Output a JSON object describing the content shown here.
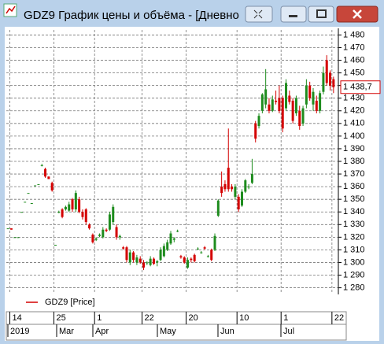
{
  "window": {
    "title": "GDZ9 График цены и объёма - [Дневно"
  },
  "chart_data": {
    "type": "candlestick",
    "categories": [
      null,
      "14",
      null,
      null,
      null,
      null,
      null,
      null,
      null,
      null,
      null,
      null,
      null,
      null,
      "25",
      null,
      null,
      null,
      null,
      null,
      null,
      null,
      null,
      null,
      null,
      null,
      "1",
      null,
      null,
      null,
      null,
      null,
      null,
      null,
      null,
      null,
      null,
      null,
      null,
      null,
      "22",
      null,
      null,
      null,
      null,
      null,
      null,
      null,
      null,
      null,
      null,
      null,
      null,
      "20",
      null,
      null,
      null,
      null,
      null,
      null,
      null,
      null,
      null,
      null,
      null,
      null,
      null,
      null,
      "10",
      null,
      null,
      null,
      null,
      null,
      null,
      null,
      null,
      null,
      null,
      null,
      null,
      "1",
      null,
      null,
      null,
      null,
      null,
      null,
      null,
      null,
      null,
      null,
      null,
      null,
      null,
      null,
      "22"
    ],
    "periods": [
      "2019",
      "Mar",
      "Apr",
      "May",
      "Jun",
      "Jul"
    ],
    "series": [
      {
        "name": "GDZ9 [Price]",
        "color": "#d40000",
        "up_color": "#1e8c1e",
        "down_color": "#d40000",
        "open": [
          1327,
          1327,
          1320,
          1320,
          1340,
          1348,
          1355,
          1347,
          1361,
          1362,
          1377,
          1374,
          1368,
          1363,
          1314,
          1340,
          1342,
          1342,
          1341,
          1350,
          1342,
          1350,
          1340,
          1342,
          1330,
          1322,
          1318,
          1321,
          1320,
          1326,
          1326,
          1332,
          1328,
          1320,
          1312,
          1312,
          1300,
          1308,
          1300,
          1303,
          1300,
          1300,
          1298,
          1303,
          1300,
          1302,
          1305,
          1310,
          1315,
          1318,
          1325,
          1305,
          1304,
          1296,
          1303,
          1306,
          1311,
          1308,
          1312,
          1305,
          1310,
          1310,
          1337,
          1360,
          1362,
          1375,
          1360,
          1352,
          1352,
          1345,
          1356,
          1360,
          1363,
          1410,
          1408,
          1420,
          1425,
          1425,
          1420,
          1428,
          1430,
          1430,
          1422,
          1432,
          1428,
          1418,
          1420,
          1410,
          1425,
          1440,
          1425,
          1428,
          1420,
          1435,
          1460,
          1450,
          1445
        ],
        "high": [
          1327,
          1327,
          1320,
          1320,
          1340,
          1348,
          1355,
          1347,
          1361,
          1362,
          1378,
          1375,
          1368,
          1364,
          1314,
          1341,
          1343,
          1345,
          1348,
          1351,
          1357,
          1352,
          1342,
          1343,
          1331,
          1323,
          1320,
          1323,
          1328,
          1327,
          1340,
          1346,
          1330,
          1322,
          1313,
          1313,
          1310,
          1309,
          1306,
          1305,
          1302,
          1301,
          1305,
          1304,
          1302,
          1312,
          1315,
          1318,
          1325,
          1320,
          1326,
          1306,
          1305,
          1304,
          1304,
          1307,
          1312,
          1309,
          1313,
          1306,
          1311,
          1323,
          1350,
          1372,
          1365,
          1406,
          1362,
          1362,
          1354,
          1358,
          1366,
          1362,
          1382,
          1412,
          1418,
          1434,
          1453,
          1430,
          1432,
          1436,
          1440,
          1432,
          1445,
          1436,
          1430,
          1432,
          1424,
          1424,
          1445,
          1443,
          1438,
          1432,
          1436,
          1455,
          1464,
          1452,
          1447
        ],
        "low": [
          1327,
          1326,
          1320,
          1320,
          1340,
          1348,
          1355,
          1347,
          1361,
          1362,
          1376,
          1367,
          1366,
          1356,
          1314,
          1339,
          1335,
          1341,
          1340,
          1340,
          1340,
          1339,
          1334,
          1330,
          1326,
          1315,
          1317,
          1320,
          1319,
          1324,
          1325,
          1330,
          1318,
          1318,
          1310,
          1300,
          1298,
          1300,
          1298,
          1299,
          1294,
          1298,
          1297,
          1298,
          1297,
          1301,
          1304,
          1309,
          1314,
          1316,
          1324,
          1303,
          1299,
          1295,
          1300,
          1300,
          1310,
          1307,
          1310,
          1304,
          1301,
          1309,
          1336,
          1352,
          1356,
          1356,
          1356,
          1350,
          1340,
          1344,
          1355,
          1358,
          1362,
          1395,
          1406,
          1418,
          1422,
          1418,
          1419,
          1425,
          1418,
          1403,
          1420,
          1425,
          1410,
          1416,
          1405,
          1408,
          1422,
          1428,
          1420,
          1418,
          1418,
          1433,
          1440,
          1436,
          1434
        ],
        "close": [
          1327,
          1326,
          1320,
          1320,
          1340,
          1348,
          1355,
          1347,
          1361,
          1362,
          1377,
          1368,
          1366,
          1357,
          1314,
          1340,
          1336,
          1344,
          1346,
          1342,
          1355,
          1340,
          1336,
          1332,
          1327,
          1316,
          1319,
          1322,
          1326,
          1325,
          1338,
          1344,
          1320,
          1321,
          1311,
          1302,
          1308,
          1302,
          1304,
          1300,
          1296,
          1300,
          1303,
          1299,
          1301,
          1310,
          1313,
          1316,
          1323,
          1319,
          1325,
          1304,
          1300,
          1302,
          1302,
          1301,
          1311,
          1308,
          1311,
          1305,
          1302,
          1321,
          1349,
          1355,
          1358,
          1358,
          1358,
          1360,
          1342,
          1356,
          1365,
          1360,
          1370,
          1398,
          1416,
          1433,
          1437,
          1420,
          1429,
          1427,
          1420,
          1406,
          1442,
          1427,
          1412,
          1430,
          1408,
          1422,
          1440,
          1430,
          1435,
          1420,
          1434,
          1450,
          1442,
          1440,
          1438.7
        ]
      }
    ],
    "last_value": 1438.7,
    "last_label": "1 438,7",
    "ylim": [
      1276,
      1484
    ],
    "yticks": [
      {
        "value": 1280,
        "label": "1 280"
      },
      {
        "value": 1290,
        "label": "1 290"
      },
      {
        "value": 1300,
        "label": "1 300"
      },
      {
        "value": 1310,
        "label": "1 310"
      },
      {
        "value": 1320,
        "label": "1 320"
      },
      {
        "value": 1330,
        "label": "1 330"
      },
      {
        "value": 1340,
        "label": "1 340"
      },
      {
        "value": 1350,
        "label": "1 350"
      },
      {
        "value": 1360,
        "label": "1 360"
      },
      {
        "value": 1370,
        "label": "1 370"
      },
      {
        "value": 1380,
        "label": "1 380"
      },
      {
        "value": 1390,
        "label": "1 390"
      },
      {
        "value": 1400,
        "label": "1 400"
      },
      {
        "value": 1410,
        "label": "1 410"
      },
      {
        "value": 1420,
        "label": "1 420"
      },
      {
        "value": 1430,
        "label": "1 430"
      },
      {
        "value": 1440,
        "label": "1 440"
      },
      {
        "value": 1450,
        "label": "1 450"
      },
      {
        "value": 1460,
        "label": "1 460"
      },
      {
        "value": 1470,
        "label": "1 470"
      },
      {
        "value": 1480,
        "label": "1 480"
      }
    ],
    "grid": true
  }
}
